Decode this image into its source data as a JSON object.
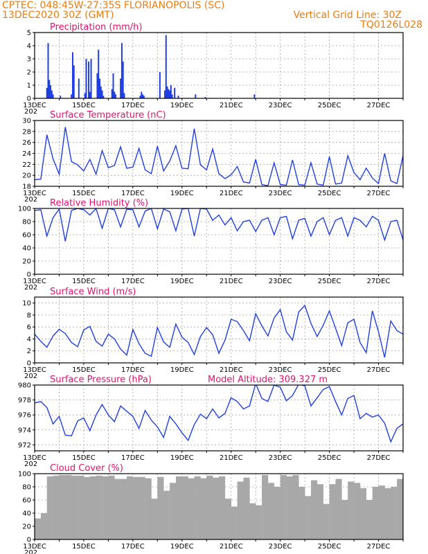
{
  "header": {
    "line1": "CPTEC:   048:45W-27:35S  FLORIANOPOLIS (SC)",
    "line2": "13DEC2020 30Z (GMT)",
    "grid_note": "Vertical Grid Line: 30Z",
    "code": "TQ0126L028",
    "year_label": "202"
  },
  "colors": {
    "header": "#e87d12",
    "title": "#e0116f",
    "series": "#1f3fe0",
    "cloud": "#a8a8a8",
    "grid": "#a0a0a0"
  },
  "x_ticks": [
    "13DEC",
    "15DEC",
    "17DEC",
    "19DEC",
    "21DEC",
    "23DEC",
    "25DEC",
    "27DEC"
  ],
  "chart_data": [
    {
      "type": "bar",
      "title": "Precipitation (mm/h)",
      "ylim": [
        0,
        5
      ],
      "yticks": [
        0,
        1,
        2,
        3,
        4,
        5
      ],
      "x": [
        0.5,
        0.55,
        0.6,
        0.65,
        0.7,
        0.75,
        1.05,
        1.5,
        1.55,
        1.6,
        1.8,
        2.05,
        2.1,
        2.2,
        2.25,
        2.3,
        2.55,
        2.6,
        2.65,
        2.7,
        2.75,
        2.8,
        3.15,
        3.2,
        3.25,
        3.3,
        3.5,
        3.55,
        3.6,
        3.65,
        4.3,
        4.35,
        4.4,
        4.45,
        5.1,
        5.3,
        5.35,
        5.4,
        5.45,
        5.5,
        5.55,
        5.6,
        5.7,
        5.85,
        6.55,
        6.95,
        8.95
      ],
      "values": [
        0.8,
        4.2,
        1.4,
        1.0,
        0.6,
        0.3,
        0.2,
        0.3,
        3.5,
        2.5,
        1.5,
        0.4,
        3.0,
        2.8,
        0.5,
        3.0,
        1.9,
        3.7,
        1.5,
        0.9,
        0.6,
        0.2,
        0.7,
        1.9,
        0.5,
        0.3,
        1.5,
        4.2,
        2.8,
        0.4,
        0.2,
        0.5,
        0.3,
        0.2,
        2.0,
        0.6,
        4.8,
        0.9,
        0.7,
        0.6,
        1.0,
        0.3,
        0.8,
        0.2,
        0.3,
        0.1,
        0.3
      ]
    },
    {
      "type": "line",
      "title": "Surface Temperature (nC)",
      "ylim": [
        18,
        30
      ],
      "yticks": [
        18,
        20,
        22,
        24,
        26,
        28,
        30
      ],
      "x": [
        0,
        0.25,
        0.5,
        0.75,
        1.0,
        1.25,
        1.5,
        1.75,
        2.0,
        2.25,
        2.5,
        2.75,
        3.0,
        3.25,
        3.5,
        3.75,
        4.0,
        4.25,
        4.5,
        4.75,
        5.0,
        5.25,
        5.5,
        5.75,
        6.0,
        6.25,
        6.5,
        6.75,
        7.0,
        7.25,
        7.5,
        7.75,
        8.0,
        8.25,
        8.5,
        8.75,
        9.0,
        9.25,
        9.5,
        9.75,
        10.0,
        10.25,
        10.5,
        10.75,
        11.0,
        11.25,
        11.5,
        11.75,
        12.0,
        12.25,
        12.5,
        12.75,
        13.0,
        13.25,
        13.5,
        13.75,
        14.0,
        14.25,
        14.5,
        14.75,
        15.0
      ],
      "values": [
        19.2,
        19.3,
        27.4,
        23.0,
        20.2,
        28.8,
        22.5,
        21.9,
        20.8,
        22.9,
        20.2,
        24.5,
        21.4,
        21.8,
        25.2,
        21.3,
        21.5,
        24.9,
        21.0,
        20.3,
        25.3,
        20.8,
        22.6,
        25.4,
        21.3,
        21.2,
        28.5,
        21.9,
        21.0,
        24.8,
        20.3,
        19.4,
        20.1,
        21.6,
        18.8,
        18.6,
        22.9,
        18.3,
        18.1,
        22.3,
        18.3,
        18.2,
        22.8,
        18.3,
        18.2,
        22.3,
        18.4,
        18.2,
        23.4,
        18.4,
        18.6,
        23.6,
        20.5,
        19.2,
        21.3,
        19.5,
        18.5,
        24.0,
        19.0,
        18.5,
        23.6
      ]
    },
    {
      "type": "line",
      "title": "Relative Humidity (%)",
      "ylim": [
        0,
        100
      ],
      "yticks": [
        0,
        20,
        40,
        60,
        80,
        100
      ],
      "x": [
        0,
        0.25,
        0.5,
        0.75,
        1.0,
        1.25,
        1.5,
        1.75,
        2.0,
        2.25,
        2.5,
        2.75,
        3.0,
        3.25,
        3.5,
        3.75,
        4.0,
        4.25,
        4.5,
        4.75,
        5.0,
        5.25,
        5.5,
        5.75,
        6.0,
        6.25,
        6.5,
        6.75,
        7.0,
        7.25,
        7.5,
        7.75,
        8.0,
        8.25,
        8.5,
        8.75,
        9.0,
        9.25,
        9.5,
        9.75,
        10.0,
        10.25,
        10.5,
        10.75,
        11.0,
        11.25,
        11.5,
        11.75,
        12.0,
        12.25,
        12.5,
        12.75,
        13.0,
        13.25,
        13.5,
        13.75,
        14.0,
        14.25,
        14.5,
        14.75,
        15.0
      ],
      "values": [
        97,
        98,
        58,
        86,
        99,
        50,
        97,
        100,
        98,
        90,
        100,
        70,
        100,
        98,
        72,
        99,
        98,
        72,
        96,
        100,
        69,
        99,
        95,
        66,
        99,
        100,
        58,
        100,
        99,
        82,
        90,
        75,
        86,
        66,
        80,
        82,
        65,
        82,
        86,
        60,
        86,
        88,
        54,
        82,
        85,
        58,
        80,
        86,
        60,
        82,
        86,
        58,
        86,
        82,
        72,
        88,
        82,
        52,
        80,
        82,
        52
      ]
    },
    {
      "type": "line",
      "title": "Surface Wind (m/s)",
      "ylim": [
        0,
        11
      ],
      "yticks": [
        0,
        2,
        4,
        6,
        8,
        10
      ],
      "x": [
        0,
        0.25,
        0.5,
        0.75,
        1.0,
        1.25,
        1.5,
        1.75,
        2.0,
        2.25,
        2.5,
        2.75,
        3.0,
        3.25,
        3.5,
        3.75,
        4.0,
        4.25,
        4.5,
        4.75,
        5.0,
        5.25,
        5.5,
        5.75,
        6.0,
        6.25,
        6.5,
        6.75,
        7.0,
        7.25,
        7.5,
        7.75,
        8.0,
        8.25,
        8.5,
        8.75,
        9.0,
        9.25,
        9.5,
        9.75,
        10.0,
        10.25,
        10.5,
        10.75,
        11.0,
        11.25,
        11.5,
        11.75,
        12.0,
        12.25,
        12.5,
        12.75,
        13.0,
        13.25,
        13.5,
        13.75,
        14.0,
        14.25,
        14.5,
        14.75,
        15.0
      ],
      "values": [
        4.8,
        3.6,
        2.6,
        4.5,
        5.6,
        4.9,
        3.4,
        2.7,
        5.5,
        6.1,
        3.6,
        2.8,
        4.8,
        4.0,
        2.3,
        1.3,
        5.6,
        3.2,
        1.6,
        1.1,
        5.9,
        3.5,
        2.6,
        6.5,
        4.3,
        3.4,
        1.4,
        4.4,
        5.9,
        4.7,
        1.6,
        3.8,
        7.3,
        6.9,
        5.4,
        3.7,
        8.2,
        6.2,
        4.5,
        7.5,
        8.9,
        5.2,
        3.8,
        8.5,
        9.6,
        6.6,
        4.4,
        6.3,
        8.7,
        5.8,
        2.9,
        6.7,
        7.3,
        3.4,
        1.7,
        8.7,
        5.2,
        0.9,
        7.0,
        5.4,
        4.8
      ]
    },
    {
      "type": "line",
      "title": "Surface Pressure (hPa)",
      "annotation": "Model Altitude: 309.327  m",
      "ylim": [
        971.2,
        980
      ],
      "yticks": [
        972,
        974,
        976,
        978,
        980
      ],
      "x": [
        0,
        0.25,
        0.5,
        0.75,
        1.0,
        1.25,
        1.5,
        1.75,
        2.0,
        2.25,
        2.5,
        2.75,
        3.0,
        3.25,
        3.5,
        3.75,
        4.0,
        4.25,
        4.5,
        4.75,
        5.0,
        5.25,
        5.5,
        5.75,
        6.0,
        6.25,
        6.5,
        6.75,
        7.0,
        7.25,
        7.5,
        7.75,
        8.0,
        8.25,
        8.5,
        8.75,
        9.0,
        9.25,
        9.5,
        9.75,
        10.0,
        10.25,
        10.5,
        10.75,
        11.0,
        11.25,
        11.5,
        11.75,
        12.0,
        12.25,
        12.5,
        12.75,
        13.0,
        13.25,
        13.5,
        13.75,
        14.0,
        14.25,
        14.5,
        14.75,
        15.0
      ],
      "values": [
        977.6,
        977.8,
        977.0,
        974.8,
        975.8,
        973.3,
        973.2,
        975.2,
        975.6,
        973.9,
        976.0,
        977.4,
        976.0,
        975.1,
        977.2,
        976.5,
        975.8,
        974.2,
        976.6,
        975.3,
        974.4,
        973.0,
        975.8,
        974.8,
        973.6,
        972.6,
        974.7,
        976.1,
        975.5,
        976.8,
        975.6,
        976.2,
        978.3,
        977.8,
        976.8,
        977.2,
        980.2,
        978.2,
        977.8,
        980.0,
        979.7,
        977.9,
        978.6,
        980.1,
        979.9,
        977.2,
        978.3,
        979.4,
        979.8,
        977.8,
        976.0,
        978.2,
        978.6,
        975.5,
        976.2,
        975.7,
        976.0,
        974.9,
        972.4,
        974.2,
        974.8
      ]
    },
    {
      "type": "area",
      "title": "Cloud Cover (%)",
      "ylim": [
        0,
        100
      ],
      "yticks": [
        0,
        20,
        40,
        60,
        80,
        100
      ],
      "x": [
        0,
        0.25,
        0.5,
        0.75,
        1.0,
        1.25,
        1.5,
        1.75,
        2.0,
        2.25,
        2.5,
        2.75,
        3.0,
        3.25,
        3.5,
        3.75,
        4.0,
        4.25,
        4.5,
        4.75,
        5.0,
        5.25,
        5.5,
        5.75,
        6.0,
        6.25,
        6.5,
        6.75,
        7.0,
        7.25,
        7.5,
        7.75,
        8.0,
        8.25,
        8.5,
        8.75,
        9.0,
        9.25,
        9.5,
        9.75,
        10.0,
        10.25,
        10.5,
        10.75,
        11.0,
        11.25,
        11.5,
        11.75,
        12.0,
        12.25,
        12.5,
        12.75,
        13.0,
        13.25,
        13.5,
        13.75,
        14.0,
        14.25,
        14.5,
        14.75,
        15.0
      ],
      "values": [
        32,
        40,
        96,
        97,
        98,
        98,
        97,
        97,
        95,
        96,
        97,
        96,
        97,
        92,
        92,
        96,
        95,
        95,
        93,
        62,
        95,
        74,
        86,
        96,
        96,
        93,
        96,
        93,
        97,
        94,
        96,
        62,
        50,
        88,
        94,
        55,
        52,
        98,
        86,
        80,
        98,
        96,
        98,
        80,
        66,
        90,
        84,
        54,
        84,
        92,
        60,
        88,
        86,
        78,
        60,
        80,
        82,
        78,
        80,
        92,
        96
      ]
    }
  ]
}
